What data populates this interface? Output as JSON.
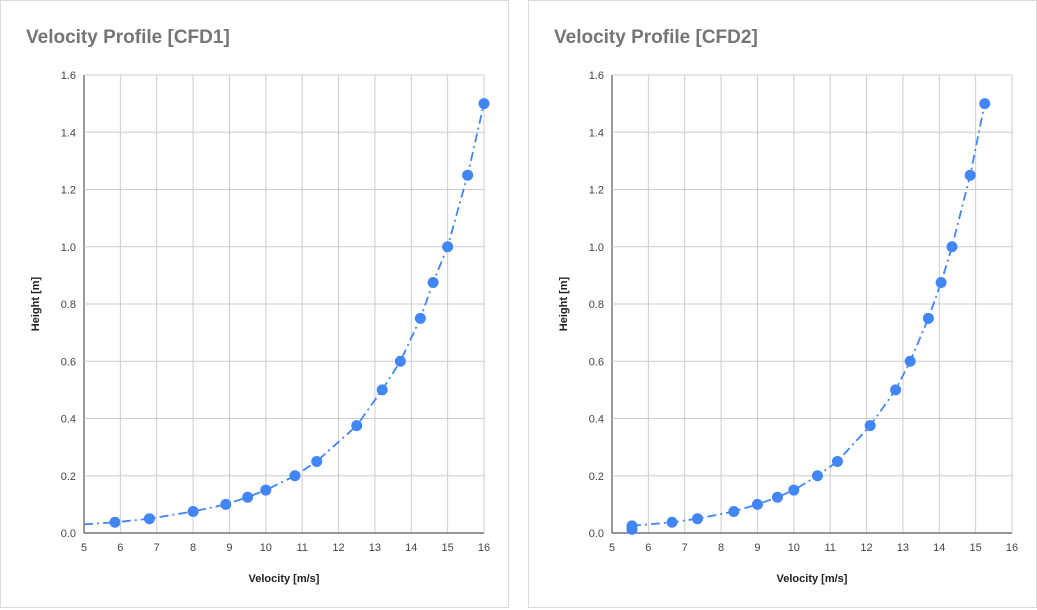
{
  "chart_data": [
    {
      "type": "scatter",
      "title": "Velocity Profile [CFD1]",
      "xlabel": "Velocity [m/s]",
      "ylabel": "Height [m]",
      "xlim": [
        5,
        16
      ],
      "ylim": [
        0,
        1.6
      ],
      "xticks": [
        "5",
        "6",
        "7",
        "8",
        "9",
        "10",
        "11",
        "12",
        "13",
        "14",
        "15",
        "16"
      ],
      "yticks": [
        "0.0",
        "0.2",
        "0.4",
        "0.6",
        "0.8",
        "1.0",
        "1.2",
        "1.4",
        "1.6"
      ],
      "grid": true,
      "series": [
        {
          "x": [
            5.85,
            6.8,
            8.0,
            8.9,
            9.5,
            10.0,
            10.8,
            11.4,
            12.5,
            13.2,
            13.7,
            14.25,
            14.6,
            15.0,
            15.55,
            16.0
          ],
          "y": [
            0.0375,
            0.05,
            0.075,
            0.1,
            0.125,
            0.15,
            0.2,
            0.25,
            0.375,
            0.5,
            0.6,
            0.75,
            0.875,
            1.0,
            1.25,
            1.5
          ],
          "color": "#4285f4"
        }
      ],
      "trendline": {
        "style": "dash-dot",
        "color": "#4285f4",
        "x": [
          5.0,
          5.85,
          6.8,
          8.0,
          8.9,
          9.5,
          10.0,
          10.8,
          11.4,
          12.5,
          13.2,
          13.7,
          14.25,
          14.6,
          15.0,
          15.55,
          16.0
        ],
        "y": [
          0.03,
          0.0375,
          0.05,
          0.075,
          0.1,
          0.125,
          0.15,
          0.2,
          0.25,
          0.375,
          0.5,
          0.6,
          0.75,
          0.875,
          1.0,
          1.25,
          1.5
        ]
      }
    },
    {
      "type": "scatter",
      "title": "Velocity Profile [CFD2]",
      "xlabel": "Velocity [m/s]",
      "ylabel": "Height [m]",
      "xlim": [
        5,
        16
      ],
      "ylim": [
        0,
        1.6
      ],
      "xticks": [
        "5",
        "6",
        "7",
        "8",
        "9",
        "10",
        "11",
        "12",
        "13",
        "14",
        "15",
        "16"
      ],
      "yticks": [
        "0.0",
        "0.2",
        "0.4",
        "0.6",
        "0.8",
        "1.0",
        "1.2",
        "1.4",
        "1.6"
      ],
      "grid": true,
      "series": [
        {
          "x": [
            5.55,
            5.55,
            6.65,
            7.35,
            8.35,
            9.0,
            9.55,
            10.0,
            10.65,
            11.2,
            12.1,
            12.8,
            13.2,
            13.7,
            14.05,
            14.35,
            14.85,
            15.25
          ],
          "y": [
            0.0125,
            0.025,
            0.0375,
            0.05,
            0.075,
            0.1,
            0.125,
            0.15,
            0.2,
            0.25,
            0.375,
            0.5,
            0.6,
            0.75,
            0.875,
            1.0,
            1.25,
            1.5
          ],
          "color": "#4285f4"
        }
      ],
      "trendline": {
        "style": "dash-dot",
        "color": "#4285f4",
        "x": [
          5.55,
          6.65,
          7.35,
          8.35,
          9.0,
          9.55,
          10.0,
          10.65,
          11.2,
          12.1,
          12.8,
          13.2,
          13.7,
          14.05,
          14.35,
          14.85,
          15.25
        ],
        "y": [
          0.025,
          0.0375,
          0.05,
          0.075,
          0.1,
          0.125,
          0.15,
          0.2,
          0.25,
          0.375,
          0.5,
          0.6,
          0.75,
          0.875,
          1.0,
          1.25,
          1.5
        ]
      }
    }
  ]
}
